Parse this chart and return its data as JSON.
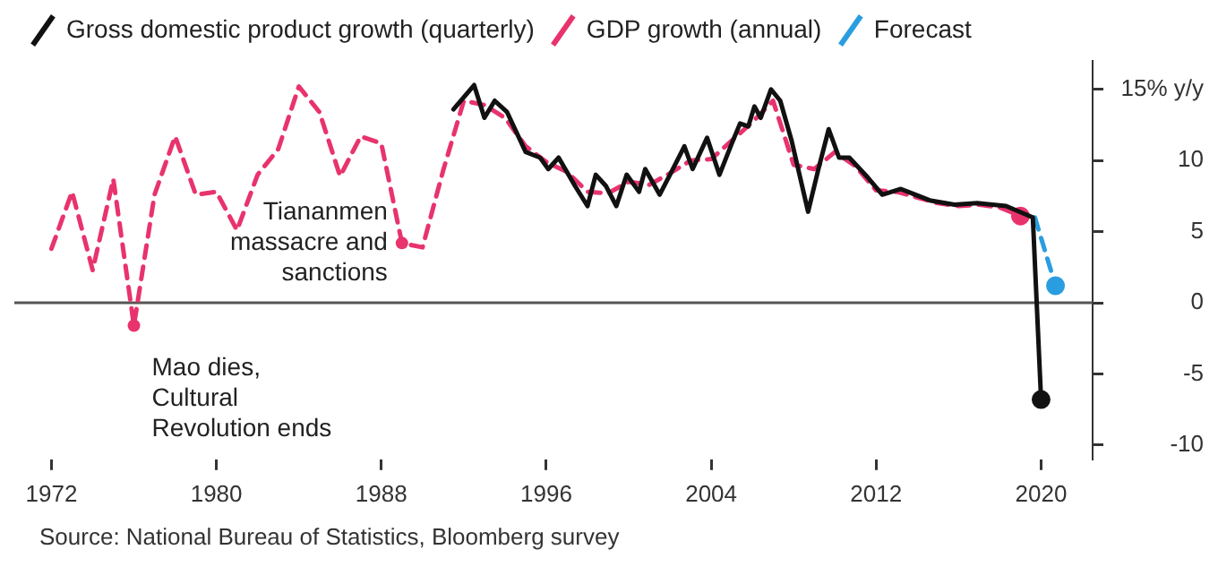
{
  "chart_data": {
    "type": "line",
    "series": [
      {
        "name": "Gross domestic product growth (quarterly)",
        "color": "#111111",
        "line_style": "solid",
        "x": [
          1991.5,
          1992.5,
          1993.0,
          1993.5,
          1994.1,
          1995.0,
          1995.7,
          1996.1,
          1996.6,
          1997.4,
          1998.0,
          1998.4,
          1998.9,
          1999.4,
          1999.9,
          2000.5,
          2000.8,
          2001.5,
          2002.0,
          2002.7,
          2003.1,
          2003.8,
          2004.4,
          2005.0,
          2005.4,
          2005.8,
          2006.1,
          2006.4,
          2006.9,
          2007.35,
          2007.9,
          2008.7,
          2009.2,
          2009.7,
          2010.2,
          2010.7,
          2011.6,
          2012.3,
          2013.2,
          2014.6,
          2015.8,
          2016.9,
          2018.3,
          2019.6,
          2020.0
        ],
        "values": [
          13.6,
          15.3,
          13.0,
          14.2,
          13.4,
          10.6,
          10.2,
          9.4,
          10.2,
          8.2,
          6.8,
          9.0,
          8.2,
          6.8,
          9.0,
          7.8,
          9.4,
          7.6,
          9.0,
          11.0,
          9.4,
          11.6,
          9.0,
          11.2,
          12.6,
          12.4,
          13.8,
          13.0,
          15.0,
          14.2,
          11.4,
          6.4,
          9.4,
          12.2,
          10.2,
          10.2,
          8.8,
          7.6,
          8.0,
          7.2,
          6.9,
          7.0,
          6.8,
          6.0,
          -6.8
        ]
      },
      {
        "name": "GDP growth (annual)",
        "color": "#e8336d",
        "line_style": "dashed",
        "x": [
          1972,
          1973,
          1974,
          1975,
          1976,
          1977,
          1978,
          1979,
          1980,
          1981,
          1982,
          1983,
          1984,
          1985,
          1986,
          1987,
          1988,
          1989,
          1990,
          1991,
          1992,
          1993,
          1994,
          1995,
          1996,
          1997,
          1998,
          1999,
          2000,
          2001,
          2002,
          2003,
          2004,
          2005,
          2006,
          2007,
          2008,
          2009,
          2010,
          2011,
          2012,
          2013,
          2014,
          2015,
          2016,
          2017,
          2018,
          2019
        ],
        "values": [
          3.8,
          7.8,
          2.3,
          8.7,
          -1.6,
          7.6,
          11.7,
          7.6,
          7.8,
          5.1,
          9.0,
          10.8,
          15.2,
          13.4,
          8.9,
          11.7,
          11.2,
          4.2,
          3.9,
          9.3,
          14.2,
          13.9,
          13.0,
          11.0,
          9.9,
          9.2,
          7.8,
          7.7,
          8.5,
          8.3,
          9.1,
          10.0,
          10.1,
          11.4,
          12.7,
          14.2,
          9.7,
          9.4,
          10.6,
          9.6,
          7.9,
          7.8,
          7.4,
          7.0,
          6.8,
          6.9,
          6.7,
          6.1
        ]
      },
      {
        "name": "Forecast",
        "color": "#2a9de0",
        "line_style": "dashed",
        "x": [
          2019.7,
          2020.7
        ],
        "values": [
          6.0,
          1.2
        ]
      }
    ],
    "xlim": [
      1970.2,
      2022.5
    ],
    "xticks": [
      1972,
      1980,
      1988,
      1996,
      2004,
      2012,
      2020
    ],
    "ylim": [
      -11,
      17
    ],
    "yticks": [
      {
        "value": 15,
        "label": "15% y/y"
      },
      10,
      5,
      0,
      -5,
      -10
    ],
    "ref_lines": [
      {
        "axis": "y",
        "value": 0,
        "color": "#555555"
      }
    ],
    "annotations": [
      {
        "text": "Mao dies,\nCultural\nRevolution ends",
        "x": 1976,
        "y": -1.6
      },
      {
        "text": "Tiananmen\nmassacre and\nsanctions",
        "x": 1989,
        "y": 4.2
      },
      "Source: National Bureau of Statistics, Bloomberg survey"
    ],
    "legend": "top left",
    "grid": false
  }
}
